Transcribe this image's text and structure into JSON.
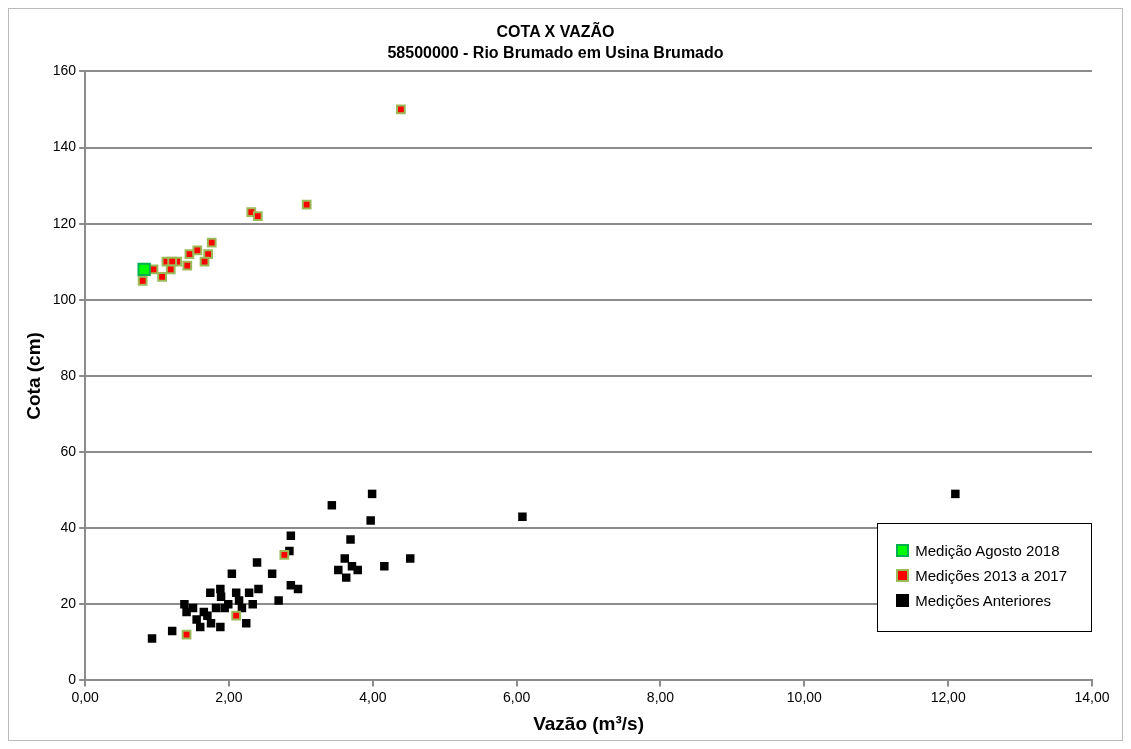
{
  "chart_data": {
    "type": "scatter",
    "title": "COTA X VAZÃO",
    "subtitle": "58500000 - Rio Brumado em Usina Brumado",
    "xlabel": "Vazão (m³/s)",
    "ylabel": "Cota (cm)",
    "xlim": [
      0,
      14
    ],
    "ylim": [
      0,
      160
    ],
    "xticks": [
      {
        "value": 0,
        "label": "0,00"
      },
      {
        "value": 2,
        "label": "2,00"
      },
      {
        "value": 4,
        "label": "4,00"
      },
      {
        "value": 6,
        "label": "6,00"
      },
      {
        "value": 8,
        "label": "8,00"
      },
      {
        "value": 10,
        "label": "10,00"
      },
      {
        "value": 12,
        "label": "12,00"
      },
      {
        "value": 14,
        "label": "14,00"
      }
    ],
    "yticks": [
      0,
      20,
      40,
      60,
      80,
      100,
      120,
      140,
      160
    ],
    "grid": "y",
    "legend": "bottom right",
    "marker": "square",
    "series": [
      {
        "name": "Medições Anteriores",
        "color": "#000000",
        "x": [
          0.93,
          1.21,
          2.86,
          2.84,
          2.39,
          2.04,
          2.6,
          2.86,
          2.96,
          2.69,
          2.24,
          1.38,
          1.41,
          1.5,
          1.74,
          1.88,
          2.1,
          2.28,
          2.41,
          2.33,
          1.6,
          1.88,
          1.55,
          1.7,
          1.82,
          1.94,
          2.18,
          2.14,
          1.65,
          1.75,
          1.89,
          1.99,
          3.43,
          3.99,
          3.97,
          6.08,
          3.69,
          3.61,
          3.52,
          3.63,
          3.71,
          3.79,
          4.16,
          4.52,
          12.1
        ],
        "values": [
          11,
          13,
          38,
          34,
          31,
          28,
          28,
          25,
          24,
          21,
          15,
          20,
          18,
          19,
          23,
          24,
          23,
          23,
          24,
          20,
          14,
          14,
          16,
          17,
          19,
          19,
          19,
          21,
          18,
          15,
          22,
          20,
          46,
          49,
          42,
          43,
          37,
          32,
          29,
          27,
          30,
          29,
          30,
          32,
          49
        ]
      },
      {
        "name": "Medições 2013 a 2017",
        "color": "#ff0000",
        "x": [
          0.8,
          0.95,
          1.07,
          1.13,
          1.28,
          1.21,
          1.19,
          1.42,
          1.45,
          1.56,
          1.71,
          1.66,
          1.76,
          4.39,
          2.31,
          2.4,
          3.08,
          1.41,
          2.1,
          2.77
        ],
        "values": [
          105,
          108,
          106,
          110,
          110,
          110,
          108,
          109,
          112,
          113,
          112,
          110,
          115,
          150,
          123,
          122,
          125,
          12,
          17,
          33
        ]
      },
      {
        "name": "Medição Agosto 2018",
        "color": "#00ff00",
        "x": [
          0.82
        ],
        "values": [
          108
        ]
      }
    ]
  }
}
